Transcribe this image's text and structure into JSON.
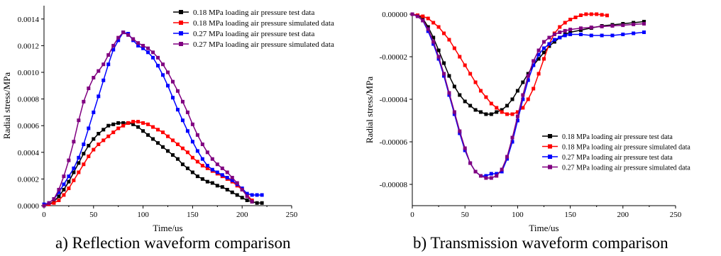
{
  "chart_data": [
    {
      "type": "line",
      "caption": "a) Reflection waveform comparison",
      "title": "",
      "xlabel": "Time/us",
      "ylabel": "Radial stress/MPa",
      "xlim": [
        0,
        250
      ],
      "ylim": [
        0,
        0.0015
      ],
      "xticks": [
        0,
        50,
        100,
        150,
        200,
        250
      ],
      "xtick_labels": [
        "0",
        "50",
        "100",
        "150",
        "200",
        "250"
      ],
      "yticks": [
        0,
        0.0002,
        0.0004,
        0.0006,
        0.0008,
        0.001,
        0.0012,
        0.0014
      ],
      "ytick_labels": [
        "0.0000",
        "0.0002",
        "0.0004",
        "0.0006",
        "0.0008",
        "0.0010",
        "0.0012",
        "0.0014"
      ],
      "legend_position": "top-right",
      "colors": [
        "#000000",
        "#ff0000",
        "#0000ff",
        "#800080"
      ],
      "series": [
        {
          "name": "0.18 MPa loading air pressure test data",
          "color": "#000000",
          "x": [
            0,
            5,
            10,
            15,
            20,
            25,
            30,
            35,
            40,
            45,
            50,
            55,
            60,
            65,
            70,
            75,
            80,
            85,
            90,
            95,
            100,
            105,
            110,
            115,
            120,
            125,
            130,
            135,
            140,
            145,
            150,
            155,
            160,
            165,
            170,
            175,
            180,
            185,
            190,
            195,
            200,
            205,
            210,
            215,
            220
          ],
          "y": [
            0,
            1e-05,
            3e-05,
            7e-05,
            0.00012,
            0.00018,
            0.00025,
            0.00032,
            0.00039,
            0.00045,
            0.0005,
            0.00054,
            0.00057,
            0.0006,
            0.00061,
            0.00062,
            0.00062,
            0.00062,
            0.00061,
            0.00059,
            0.00056,
            0.00053,
            0.0005,
            0.00047,
            0.00044,
            0.00041,
            0.00038,
            0.00035,
            0.00031,
            0.00028,
            0.00025,
            0.00022,
            0.0002,
            0.00018,
            0.00017,
            0.00015,
            0.00014,
            0.00012,
            0.0001,
            8e-05,
            6e-05,
            4e-05,
            3e-05,
            2e-05,
            2e-05
          ]
        },
        {
          "name": "0.18 MPa loading air pressure simulated data",
          "color": "#ff0000",
          "x": [
            0,
            5,
            10,
            15,
            20,
            25,
            30,
            35,
            40,
            45,
            50,
            55,
            60,
            65,
            70,
            75,
            80,
            85,
            90,
            95,
            100,
            105,
            110,
            115,
            120,
            125,
            130,
            135,
            140,
            145,
            150,
            155,
            160,
            165,
            170,
            175,
            180,
            185,
            190,
            195,
            200,
            205,
            210
          ],
          "y": [
            0,
            1e-05,
            2e-05,
            4e-05,
            8e-05,
            0.00013,
            0.00019,
            0.00025,
            0.00031,
            0.00037,
            0.00042,
            0.00046,
            0.00049,
            0.00052,
            0.00055,
            0.00058,
            0.0006,
            0.00062,
            0.00063,
            0.00063,
            0.00062,
            0.00061,
            0.00059,
            0.00057,
            0.00055,
            0.00052,
            0.00049,
            0.00046,
            0.00043,
            0.0004,
            0.00036,
            0.00033,
            0.0003,
            0.00028,
            0.00026,
            0.00024,
            0.00022,
            0.0002,
            0.00018,
            0.00015,
            0.00012,
            8e-05,
            4e-05
          ]
        },
        {
          "name": "0.27 MPa loading air pressure test data",
          "color": "#0000ff",
          "x": [
            0,
            5,
            10,
            15,
            20,
            25,
            30,
            35,
            40,
            45,
            50,
            55,
            60,
            65,
            70,
            75,
            80,
            85,
            90,
            95,
            100,
            105,
            110,
            115,
            120,
            125,
            130,
            135,
            140,
            145,
            150,
            155,
            160,
            165,
            170,
            175,
            180,
            185,
            190,
            195,
            200,
            205,
            210,
            215,
            220
          ],
          "y": [
            1e-05,
            2e-05,
            5e-05,
            0.0001,
            0.00016,
            0.00022,
            0.00028,
            0.00036,
            0.00046,
            0.00058,
            0.0007,
            0.00082,
            0.00094,
            0.00106,
            0.00117,
            0.00124,
            0.0013,
            0.00129,
            0.00124,
            0.0012,
            0.00118,
            0.00115,
            0.00111,
            0.00105,
            0.00098,
            0.0009,
            0.00081,
            0.00072,
            0.00064,
            0.00056,
            0.00048,
            0.00041,
            0.00035,
            0.0003,
            0.00027,
            0.00025,
            0.00023,
            0.00021,
            0.00019,
            0.00016,
            0.00013,
            9e-05,
            8e-05,
            8e-05,
            8e-05
          ]
        },
        {
          "name": "0.27 MPa loading air pressure simulated data",
          "color": "#800080",
          "x": [
            0,
            5,
            10,
            15,
            20,
            25,
            30,
            35,
            40,
            45,
            50,
            55,
            60,
            65,
            70,
            75,
            80,
            85,
            90,
            95,
            100,
            105,
            110,
            115,
            120,
            125,
            130,
            135,
            140,
            145,
            150,
            155,
            160,
            165,
            170,
            175,
            180,
            185,
            190,
            195,
            200,
            205,
            210
          ],
          "y": [
            0,
            2e-05,
            5e-05,
            0.00012,
            0.00022,
            0.00034,
            0.00048,
            0.00064,
            0.00078,
            0.00088,
            0.00096,
            0.00101,
            0.00106,
            0.00113,
            0.0012,
            0.00126,
            0.0013,
            0.00128,
            0.00125,
            0.00122,
            0.0012,
            0.00118,
            0.00115,
            0.00111,
            0.00106,
            0.001,
            0.00093,
            0.00086,
            0.00078,
            0.0007,
            0.00061,
            0.00053,
            0.00046,
            0.0004,
            0.00035,
            0.00031,
            0.00028,
            0.00025,
            0.00021,
            0.00017,
            0.00012,
            7e-05,
            3e-05
          ]
        }
      ]
    },
    {
      "type": "line",
      "caption": "b) Transmission waveform comparison",
      "title": "",
      "xlabel": "Time/us",
      "ylabel": "Radial stress/MPa",
      "xlim": [
        0,
        250
      ],
      "ylim": [
        -9e-05,
        0
      ],
      "xticks": [
        0,
        50,
        100,
        150,
        200,
        250
      ],
      "xtick_labels": [
        "0",
        "50",
        "100",
        "150",
        "200",
        "250"
      ],
      "yticks": [
        0,
        -2e-05,
        -4e-05,
        -6e-05,
        -8e-05
      ],
      "ytick_labels": [
        "0.00000",
        "-0.00002",
        "-0.00004",
        "-0.00006",
        "-0.00008"
      ],
      "legend_position": "bottom-right",
      "colors": [
        "#000000",
        "#ff0000",
        "#0000ff",
        "#800080"
      ],
      "series": [
        {
          "name": "0.18 MPa loading air pressure test data",
          "color": "#000000",
          "x": [
            0,
            5,
            10,
            15,
            20,
            25,
            30,
            35,
            40,
            45,
            50,
            55,
            60,
            65,
            70,
            75,
            80,
            85,
            90,
            95,
            100,
            105,
            110,
            115,
            120,
            125,
            130,
            135,
            140,
            145,
            150,
            160,
            170,
            180,
            190,
            200,
            210,
            220
          ],
          "y": [
            0,
            -5e-07,
            -2e-06,
            -6e-06,
            -1.1e-05,
            -1.7e-05,
            -2.3e-05,
            -2.9e-05,
            -3.4e-05,
            -3.8e-05,
            -4.1e-05,
            -4.3e-05,
            -4.5e-05,
            -4.6e-05,
            -4.7e-05,
            -4.7e-05,
            -4.6e-05,
            -4.5e-05,
            -4.3e-05,
            -4e-05,
            -3.6e-05,
            -3.2e-05,
            -2.8e-05,
            -2.4e-05,
            -2.1e-05,
            -1.8e-05,
            -1.5e-05,
            -1.3e-05,
            -1.1e-05,
            -9.5e-06,
            -8.5e-06,
            -7.5e-06,
            -6.5e-06,
            -5.5e-06,
            -5e-06,
            -4.5e-06,
            -4e-06,
            -3.5e-06
          ]
        },
        {
          "name": "0.18 MPa loading air pressure simulated data",
          "color": "#ff0000",
          "x": [
            0,
            5,
            10,
            15,
            20,
            25,
            30,
            35,
            40,
            45,
            50,
            55,
            60,
            65,
            70,
            75,
            80,
            85,
            90,
            95,
            100,
            105,
            110,
            115,
            120,
            125,
            130,
            135,
            140,
            145,
            150,
            155,
            160,
            165,
            170,
            175,
            180,
            185
          ],
          "y": [
            0,
            -5e-07,
            -1e-06,
            -2e-06,
            -4e-06,
            -6e-06,
            -9e-06,
            -1.2e-05,
            -1.6e-05,
            -2e-05,
            -2.4e-05,
            -2.8e-05,
            -3.2e-05,
            -3.6e-05,
            -3.9e-05,
            -4.2e-05,
            -4.4e-05,
            -4.6e-05,
            -4.7e-05,
            -4.7e-05,
            -4.6e-05,
            -4.4e-05,
            -4e-05,
            -3.5e-05,
            -2.8e-05,
            -2.1e-05,
            -1.4e-05,
            -9e-06,
            -6e-06,
            -4e-06,
            -2.5e-06,
            -1.5e-06,
            -5e-07,
            0,
            0,
            0,
            -3e-07,
            -6e-07
          ]
        },
        {
          "name": "0.27 MPa loading air pressure test data",
          "color": "#0000ff",
          "x": [
            0,
            5,
            10,
            15,
            20,
            25,
            30,
            35,
            40,
            45,
            50,
            55,
            60,
            65,
            70,
            75,
            80,
            85,
            90,
            95,
            100,
            105,
            110,
            115,
            120,
            125,
            130,
            135,
            140,
            145,
            150,
            160,
            170,
            180,
            190,
            200,
            210,
            220
          ],
          "y": [
            0,
            -1e-06,
            -3e-06,
            -8e-06,
            -1.4e-05,
            -2.1e-05,
            -2.9e-05,
            -3.8e-05,
            -4.7e-05,
            -5.6e-05,
            -6.4e-05,
            -7e-05,
            -7.4e-05,
            -7.6e-05,
            -7.6e-05,
            -7.5e-05,
            -7.5e-05,
            -7.4e-05,
            -6.8e-05,
            -6e-05,
            -5e-05,
            -4e-05,
            -3.1e-05,
            -2.4e-05,
            -1.9e-05,
            -1.6e-05,
            -1.4e-05,
            -1.2e-05,
            -1.1e-05,
            -1e-05,
            -9.5e-06,
            -9.5e-06,
            -1e-05,
            -1e-05,
            -1e-05,
            -9.5e-06,
            -9e-06,
            -8.5e-06
          ]
        },
        {
          "name": "0.27 MPa loading air pressure simulated data",
          "color": "#800080",
          "x": [
            0,
            5,
            10,
            15,
            20,
            25,
            30,
            35,
            40,
            45,
            50,
            55,
            60,
            65,
            70,
            75,
            80,
            85,
            90,
            95,
            100,
            105,
            110,
            115,
            120,
            125,
            130,
            135,
            140,
            145,
            150,
            160,
            170,
            180,
            190,
            200,
            210,
            220
          ],
          "y": [
            0,
            -1e-06,
            -3e-06,
            -7e-06,
            -1.3e-05,
            -2e-05,
            -2.8e-05,
            -3.7e-05,
            -4.6e-05,
            -5.5e-05,
            -6.3e-05,
            -7e-05,
            -7.4e-05,
            -7.6e-05,
            -7.7e-05,
            -7.7e-05,
            -7.6e-05,
            -7.3e-05,
            -6.7e-05,
            -5.8e-05,
            -4.8e-05,
            -3.8e-05,
            -2.9e-05,
            -2.2e-05,
            -1.7e-05,
            -1.3e-05,
            -1.1e-05,
            -9.5e-06,
            -8.5e-06,
            -7.8e-06,
            -7.2e-06,
            -6.6e-06,
            -6.2e-06,
            -5.8e-06,
            -5.5e-06,
            -5.2e-06,
            -4.8e-06,
            -4.5e-06
          ]
        }
      ]
    }
  ]
}
